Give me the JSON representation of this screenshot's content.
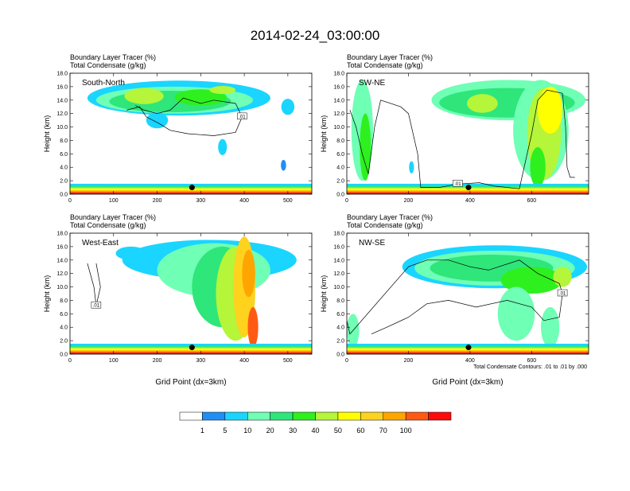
{
  "figure_title": "2014-02-24_03:00:00",
  "colorbar": {
    "colors": [
      "#ffffff",
      "#1f8ff5",
      "#1ad5ff",
      "#6fffb5",
      "#2ee67a",
      "#2ef01e",
      "#b5f53a",
      "#ffff00",
      "#ffd21e",
      "#ffa500",
      "#ff5a14",
      "#ff0a0a"
    ],
    "labels": [
      "1",
      "5",
      "10",
      "20",
      "30",
      "40",
      "50",
      "60",
      "70",
      "100"
    ]
  },
  "footnote": "Total Condensate Contours: .01 to .01 by .000",
  "chart_data": [
    {
      "type": "heatmap",
      "title": "South-North",
      "subtitle_lines": [
        "Boundary Layer Tracer   (%)",
        "Total Condensate   (g/kg)"
      ],
      "ylabel": "Height (km)",
      "xlabel": "",
      "xlim": [
        0,
        555
      ],
      "ylim": [
        0,
        18
      ],
      "xticks": [
        "0",
        "100",
        "200",
        "300",
        "400",
        "500"
      ],
      "xtick_values": [
        0,
        100,
        200,
        300,
        400,
        500
      ],
      "yticks": [
        "0.0",
        "2.0",
        "4.0",
        "6.0",
        "8.0",
        "10.0",
        "12.0",
        "14.0",
        "16.0",
        "18.0"
      ],
      "contour_label": ".01",
      "marker": {
        "x": 280,
        "y": 1.0
      }
    },
    {
      "type": "heatmap",
      "title": "SW-NE",
      "subtitle_lines": [
        "Boundary Layer Tracer   (%)",
        "Total Condensate   (g/kg)"
      ],
      "ylabel": "Height (km)",
      "xlabel": "",
      "xlim": [
        0,
        785
      ],
      "ylim": [
        0,
        18
      ],
      "xticks": [
        "0",
        "200",
        "400",
        "600"
      ],
      "xtick_values": [
        0,
        200,
        400,
        600
      ],
      "yticks": [
        "0.0",
        "2.0",
        "4.0",
        "6.0",
        "8.0",
        "10.0",
        "12.0",
        "14.0",
        "16.0",
        "18.0"
      ],
      "contour_label": ".01",
      "marker": {
        "x": 395,
        "y": 1.0
      }
    },
    {
      "type": "heatmap",
      "title": "West-East",
      "subtitle_lines": [
        "Boundary Layer Tracer   (%)",
        "Total Condensate   (g/kg)"
      ],
      "ylabel": "Height (km)",
      "xlabel": "Grid Point (dx=3km)",
      "xlim": [
        0,
        555
      ],
      "ylim": [
        0,
        18
      ],
      "xticks": [
        "0",
        "100",
        "200",
        "300",
        "400",
        "500"
      ],
      "xtick_values": [
        0,
        100,
        200,
        300,
        400,
        500
      ],
      "yticks": [
        "0.0",
        "2.0",
        "4.0",
        "6.0",
        "8.0",
        "10.0",
        "12.0",
        "14.0",
        "16.0",
        "18.0"
      ],
      "contour_label": ".01",
      "marker": {
        "x": 280,
        "y": 1.0
      }
    },
    {
      "type": "heatmap",
      "title": "NW-SE",
      "subtitle_lines": [
        "Boundary Layer Tracer   (%)",
        "Total Condensate   (g/kg)"
      ],
      "ylabel": "Height (km)",
      "xlabel": "Grid Point (dx=3km)",
      "xlim": [
        0,
        785
      ],
      "ylim": [
        0,
        18
      ],
      "xticks": [
        "0",
        "200",
        "400",
        "600"
      ],
      "xtick_values": [
        0,
        200,
        400,
        600
      ],
      "yticks": [
        "0.0",
        "2.0",
        "4.0",
        "6.0",
        "8.0",
        "10.0",
        "12.0",
        "14.0",
        "16.0",
        "18.0"
      ],
      "contour_label": ".01",
      "marker": {
        "x": 395,
        "y": 1.0
      }
    }
  ]
}
